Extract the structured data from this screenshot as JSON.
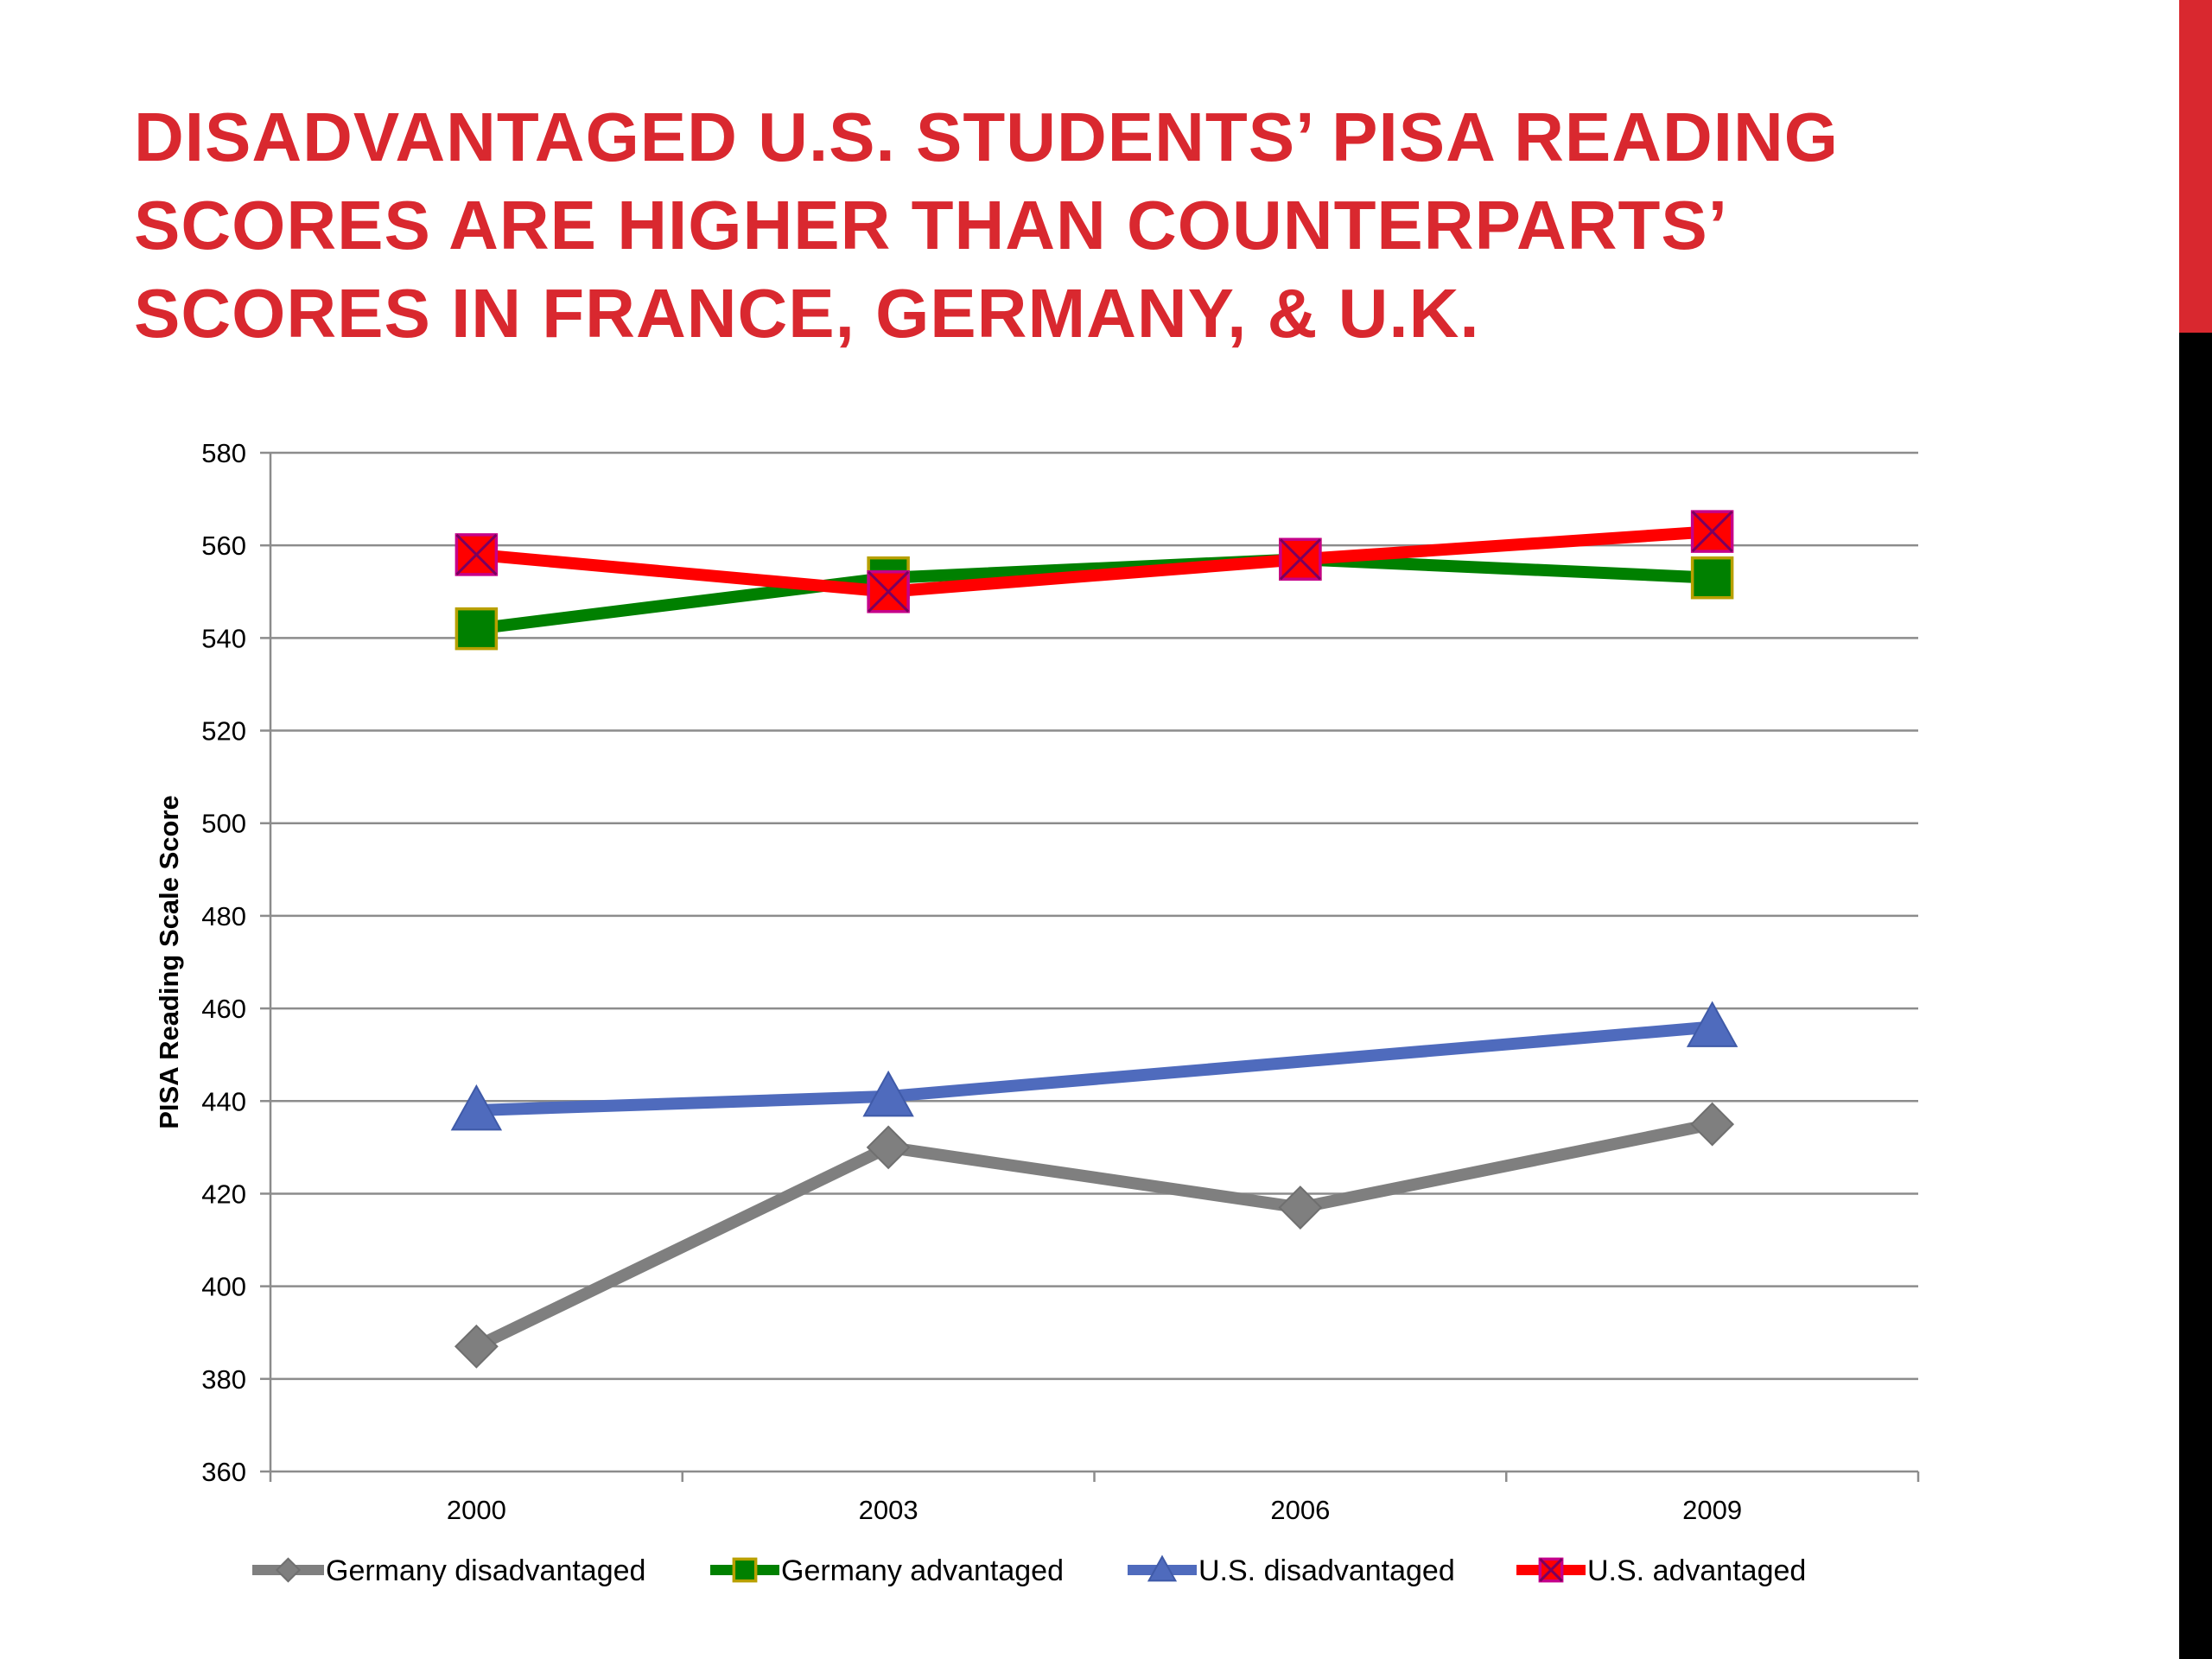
{
  "slide": {
    "title_lines": [
      "DISADVANTAGED U.S. STUDENTS’ PISA READING",
      "SCORES ARE HIGHER THAN COUNTERPARTS’",
      "SCORES IN FRANCE, GERMANY, & U.K."
    ],
    "title_color": "#d9282f",
    "accent_colors": [
      "#d9282f",
      "#000000"
    ]
  },
  "chart_data": {
    "type": "line",
    "title": "",
    "xlabel": "",
    "ylabel": "PISA Reading Scale Score",
    "categories": [
      "2000",
      "2003",
      "2006",
      "2009"
    ],
    "ylim": [
      360,
      580
    ],
    "yticks": [
      360,
      380,
      400,
      420,
      440,
      460,
      480,
      500,
      520,
      540,
      560,
      580
    ],
    "grid": "horizontal",
    "legend_position": "bottom",
    "series": [
      {
        "name": "Germany disadvantaged",
        "values": [
          387,
          430,
          417,
          435
        ],
        "color": "#7f7f7f",
        "marker": "diamond"
      },
      {
        "name": "Germany advantaged",
        "values": [
          542,
          553,
          557,
          553
        ],
        "color": "#008000",
        "marker": "square"
      },
      {
        "name": "U.S. disadvantaged",
        "values": [
          438,
          441,
          null,
          456
        ],
        "color": "#4f6bbd",
        "marker": "triangle"
      },
      {
        "name": "U.S. advantaged",
        "values": [
          558,
          550,
          557,
          563
        ],
        "color": "#ff0000",
        "marker": "x-square"
      }
    ]
  }
}
